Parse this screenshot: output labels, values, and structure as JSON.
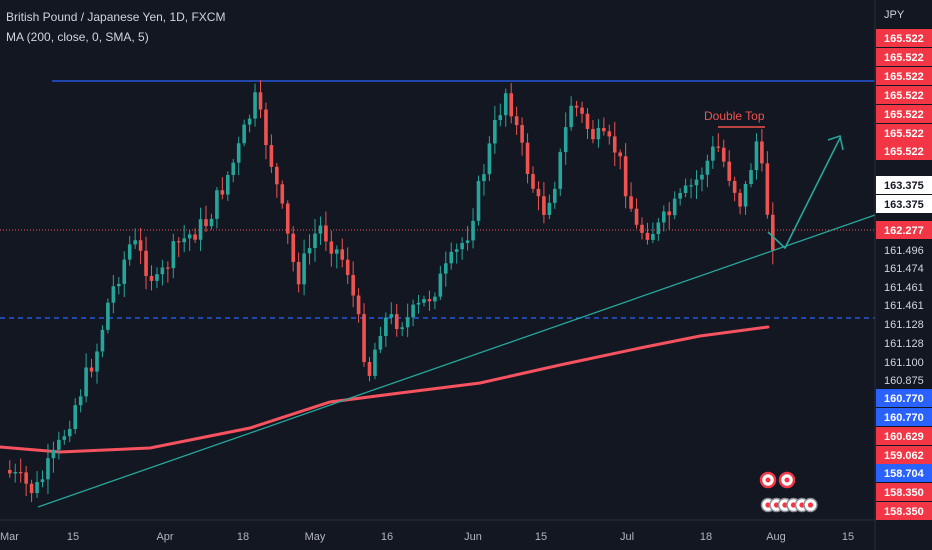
{
  "header": {
    "title": "British Pound / Japanese Yen, 1D, FXCM",
    "indicator": "MA (200, close, 0, SMA, 5)"
  },
  "chart_data": {
    "type": "candlestick",
    "currency": "JPY",
    "annotation": "Double Top",
    "x_ticks": [
      "Mar",
      "15",
      "Apr",
      "18",
      "May",
      "16",
      "Jun",
      "15",
      "Jul",
      "18",
      "Aug",
      "15"
    ],
    "price_tags": [
      {
        "value": "165.522",
        "color": "#f23645"
      },
      {
        "value": "165.522",
        "color": "#f23645"
      },
      {
        "value": "165.522",
        "color": "#f23645"
      },
      {
        "value": "165.522",
        "color": "#f23645"
      },
      {
        "value": "165.522",
        "color": "#f23645"
      },
      {
        "value": "165.522",
        "color": "#f23645"
      },
      {
        "value": "165.522",
        "color": "#f23645"
      },
      {
        "value": "163.375",
        "color": "#ffffff"
      },
      {
        "value": "163.375",
        "color": "#ffffff"
      },
      {
        "value": "162.277",
        "color": "#f23645"
      },
      {
        "value": "161.496",
        "color": "#131722"
      },
      {
        "value": "161.474",
        "color": "#131722"
      },
      {
        "value": "161.461",
        "color": "#131722"
      },
      {
        "value": "161.461",
        "color": "#131722"
      },
      {
        "value": "161.128",
        "color": "#131722"
      },
      {
        "value": "161.128",
        "color": "#131722"
      },
      {
        "value": "161.100",
        "color": "#131722"
      },
      {
        "value": "160.875",
        "color": "#131722"
      },
      {
        "value": "160.770",
        "color": "#2962ff"
      },
      {
        "value": "160.770",
        "color": "#2962ff"
      },
      {
        "value": "160.629",
        "color": "#f23645"
      },
      {
        "value": "159.062",
        "color": "#f23645"
      },
      {
        "value": "158.704",
        "color": "#2962ff"
      },
      {
        "value": "158.350",
        "color": "#f23645"
      },
      {
        "value": "158.350",
        "color": "#f23645"
      }
    ],
    "colors": {
      "up": "#26a69a",
      "down": "#ef5350",
      "ma": "#f7525f",
      "trendline": "#26a69a",
      "resistance": "#2962ff",
      "background": "#131722"
    }
  }
}
